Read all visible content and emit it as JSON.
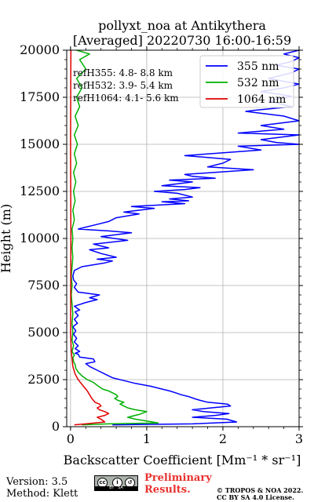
{
  "chart_data": {
    "type": "line",
    "title": "pollyxt_noa at Antikythera",
    "subtitle": "[Averaged] 20220730 16:00-16:59",
    "xlabel": "Backscatter Coefficient [Mm⁻¹ * sr⁻¹]",
    "ylabel": "Height (m)",
    "xlim": [
      -0.05,
      3
    ],
    "ylim": [
      0,
      20000
    ],
    "xticks": [
      0,
      1,
      2,
      3
    ],
    "yticks": [
      0,
      2500,
      5000,
      7500,
      10000,
      12500,
      15000,
      17500,
      20000
    ],
    "grid": true,
    "legend_position": "top-right",
    "series": [
      {
        "name": "355 nm",
        "color": "#0000ff",
        "points": [
          [
            0.55,
            100
          ],
          [
            1.6,
            150
          ],
          [
            2.18,
            250
          ],
          [
            2.05,
            400
          ],
          [
            1.6,
            500
          ],
          [
            1.9,
            600
          ],
          [
            2.08,
            700
          ],
          [
            1.75,
            800
          ],
          [
            1.6,
            900
          ],
          [
            1.85,
            1000
          ],
          [
            2.1,
            1100
          ],
          [
            2.06,
            1200
          ],
          [
            1.8,
            1300
          ],
          [
            1.7,
            1400
          ],
          [
            1.62,
            1500
          ],
          [
            1.55,
            1600
          ],
          [
            1.45,
            1700
          ],
          [
            1.38,
            1800
          ],
          [
            1.3,
            1900
          ],
          [
            1.2,
            2000
          ],
          [
            1.05,
            2150
          ],
          [
            0.85,
            2300
          ],
          [
            0.7,
            2450
          ],
          [
            0.55,
            2600
          ],
          [
            0.45,
            2800
          ],
          [
            0.35,
            3000
          ],
          [
            0.25,
            3200
          ],
          [
            0.2,
            3350
          ],
          [
            0.32,
            3450
          ],
          [
            0.3,
            3600
          ],
          [
            0.12,
            3700
          ],
          [
            0.1,
            3850
          ],
          [
            0.06,
            3900
          ],
          [
            0.12,
            4000
          ],
          [
            0.06,
            4150
          ],
          [
            0.1,
            4300
          ],
          [
            0.05,
            4500
          ],
          [
            0.08,
            4700
          ],
          [
            0.04,
            4900
          ],
          [
            0.07,
            5100
          ],
          [
            0.03,
            5300
          ],
          [
            0.09,
            5500
          ],
          [
            0.05,
            5700
          ],
          [
            0.1,
            5900
          ],
          [
            0.06,
            6100
          ],
          [
            0.12,
            6200
          ],
          [
            0.05,
            6400
          ],
          [
            0.2,
            6600
          ],
          [
            0.35,
            6750
          ],
          [
            0.25,
            6850
          ],
          [
            0.38,
            7000
          ],
          [
            0.1,
            7150
          ],
          [
            0.05,
            7400
          ],
          [
            0.08,
            7600
          ],
          [
            0.04,
            7800
          ],
          [
            0.03,
            8000
          ],
          [
            0.05,
            8300
          ],
          [
            0.15,
            8500
          ],
          [
            0.45,
            8700
          ],
          [
            0.55,
            8800
          ],
          [
            0.35,
            8900
          ],
          [
            0.6,
            9000
          ],
          [
            0.4,
            9200
          ],
          [
            0.25,
            9400
          ],
          [
            0.5,
            9500
          ],
          [
            0.3,
            9700
          ],
          [
            0.75,
            9900
          ],
          [
            0.4,
            10100
          ],
          [
            0.8,
            10300
          ],
          [
            0.5,
            10400
          ],
          [
            0.1,
            10500
          ],
          [
            0.3,
            10700
          ],
          [
            0.5,
            10900
          ],
          [
            0.6,
            11100
          ],
          [
            0.9,
            11300
          ],
          [
            0.7,
            11400
          ],
          [
            1.1,
            11600
          ],
          [
            0.8,
            11700
          ],
          [
            1.5,
            11850
          ],
          [
            1.2,
            11950
          ],
          [
            1.55,
            12000
          ],
          [
            1.3,
            12100
          ],
          [
            1.6,
            12200
          ],
          [
            1.4,
            12400
          ],
          [
            1.1,
            12500
          ],
          [
            1.5,
            12600
          ],
          [
            1.7,
            12700
          ],
          [
            1.2,
            12800
          ],
          [
            1.4,
            12900
          ],
          [
            1.6,
            13000
          ],
          [
            1.3,
            13100
          ],
          [
            1.9,
            13200
          ],
          [
            1.6,
            13300
          ],
          [
            1.5,
            13400
          ],
          [
            2.4,
            13650
          ],
          [
            1.8,
            13800
          ],
          [
            2.0,
            14000
          ],
          [
            2.1,
            14200
          ],
          [
            1.5,
            14400
          ],
          [
            2.5,
            14700
          ],
          [
            2.2,
            14900
          ],
          [
            3.0,
            15000
          ],
          [
            2.7,
            15100
          ],
          [
            2.5,
            15250
          ],
          [
            3.0,
            15500
          ],
          [
            2.2,
            15600
          ],
          [
            2.8,
            15800
          ],
          [
            2.5,
            16000
          ],
          [
            3.0,
            16250
          ],
          [
            2.8,
            16500
          ],
          [
            2.3,
            16750
          ],
          [
            2.4,
            16800
          ],
          [
            2.9,
            17000
          ],
          [
            2.6,
            17300
          ],
          [
            2.9,
            17550
          ],
          [
            2.5,
            17800
          ],
          [
            2.8,
            18000
          ],
          [
            3.0,
            18200
          ],
          [
            2.6,
            18500
          ],
          [
            2.9,
            18800
          ],
          [
            3.0,
            19000
          ],
          [
            2.7,
            19200
          ],
          [
            2.9,
            19400
          ],
          [
            3.0,
            19600
          ],
          [
            2.8,
            19800
          ],
          [
            3.0,
            20000
          ]
        ]
      },
      {
        "name": "532 nm",
        "color": "#00b000",
        "points": [
          [
            0.15,
            100
          ],
          [
            0.5,
            150
          ],
          [
            1.15,
            200
          ],
          [
            1.0,
            300
          ],
          [
            0.85,
            400
          ],
          [
            0.75,
            500
          ],
          [
            0.9,
            650
          ],
          [
            1.0,
            800
          ],
          [
            0.85,
            900
          ],
          [
            0.75,
            1000
          ],
          [
            0.7,
            1100
          ],
          [
            0.65,
            1200
          ],
          [
            0.7,
            1300
          ],
          [
            0.62,
            1400
          ],
          [
            0.58,
            1500
          ],
          [
            0.62,
            1600
          ],
          [
            0.6,
            1700
          ],
          [
            0.55,
            1800
          ],
          [
            0.5,
            1900
          ],
          [
            0.42,
            2000
          ],
          [
            0.35,
            2200
          ],
          [
            0.3,
            2350
          ],
          [
            0.22,
            2500
          ],
          [
            0.15,
            2700
          ],
          [
            0.1,
            2900
          ],
          [
            0.07,
            3100
          ],
          [
            0.06,
            3300
          ],
          [
            0.04,
            3450
          ],
          [
            0.03,
            3650
          ],
          [
            0.05,
            3800
          ],
          [
            0.02,
            4000
          ],
          [
            0.04,
            4300
          ],
          [
            0.02,
            4600
          ],
          [
            0.03,
            5000
          ],
          [
            0.02,
            5500
          ],
          [
            0.03,
            6000
          ],
          [
            0.02,
            6500
          ],
          [
            0.01,
            7000
          ],
          [
            0.02,
            7500
          ],
          [
            0.01,
            8000
          ],
          [
            0.02,
            8500
          ],
          [
            0.03,
            9000
          ],
          [
            0.02,
            9500
          ],
          [
            0.03,
            10000
          ],
          [
            0.02,
            10500
          ],
          [
            0.05,
            11000
          ],
          [
            0.03,
            11500
          ],
          [
            0.06,
            12000
          ],
          [
            0.04,
            12500
          ],
          [
            0.07,
            13000
          ],
          [
            0.04,
            13500
          ],
          [
            0.08,
            14000
          ],
          [
            0.05,
            14500
          ],
          [
            0.09,
            15000
          ],
          [
            0.05,
            15500
          ],
          [
            0.1,
            16000
          ],
          [
            0.06,
            16500
          ],
          [
            0.12,
            17000
          ],
          [
            0.08,
            17500
          ],
          [
            0.15,
            18000
          ],
          [
            0.08,
            18500
          ],
          [
            0.2,
            19000
          ],
          [
            0.12,
            19500
          ],
          [
            0.25,
            19800
          ],
          [
            0.08,
            20000
          ]
        ]
      },
      {
        "name": "1064 nm",
        "color": "#e00000",
        "points": [
          [
            0.05,
            100
          ],
          [
            0.2,
            150
          ],
          [
            0.45,
            250
          ],
          [
            0.4,
            400
          ],
          [
            0.35,
            500
          ],
          [
            0.45,
            600
          ],
          [
            0.5,
            700
          ],
          [
            0.45,
            800
          ],
          [
            0.38,
            900
          ],
          [
            0.35,
            1000
          ],
          [
            0.4,
            1100
          ],
          [
            0.38,
            1200
          ],
          [
            0.32,
            1300
          ],
          [
            0.3,
            1400
          ],
          [
            0.28,
            1500
          ],
          [
            0.25,
            1700
          ],
          [
            0.22,
            1900
          ],
          [
            0.18,
            2100
          ],
          [
            0.14,
            2300
          ],
          [
            0.1,
            2500
          ],
          [
            0.06,
            2800
          ],
          [
            0.03,
            3200
          ],
          [
            0.02,
            3600
          ],
          [
            0.01,
            4000
          ],
          [
            0.0,
            5000
          ],
          [
            0.005,
            10000
          ],
          [
            0.0,
            15000
          ],
          [
            0.005,
            20000
          ]
        ]
      }
    ],
    "annotations": [
      "refH355:  4.8- 8.8 km",
      "refH532:  3.9- 5.4 km",
      "refH1064:  4.1- 5.6 km"
    ]
  },
  "footer": {
    "version": "Version: 3.5",
    "method": "Method: Klett",
    "preliminary_line1": "Preliminary",
    "preliminary_line2": "Results.",
    "license_line1": "© TROPOS & NOA 2022.",
    "license_line2": "CC BY SA 4.0 License."
  }
}
